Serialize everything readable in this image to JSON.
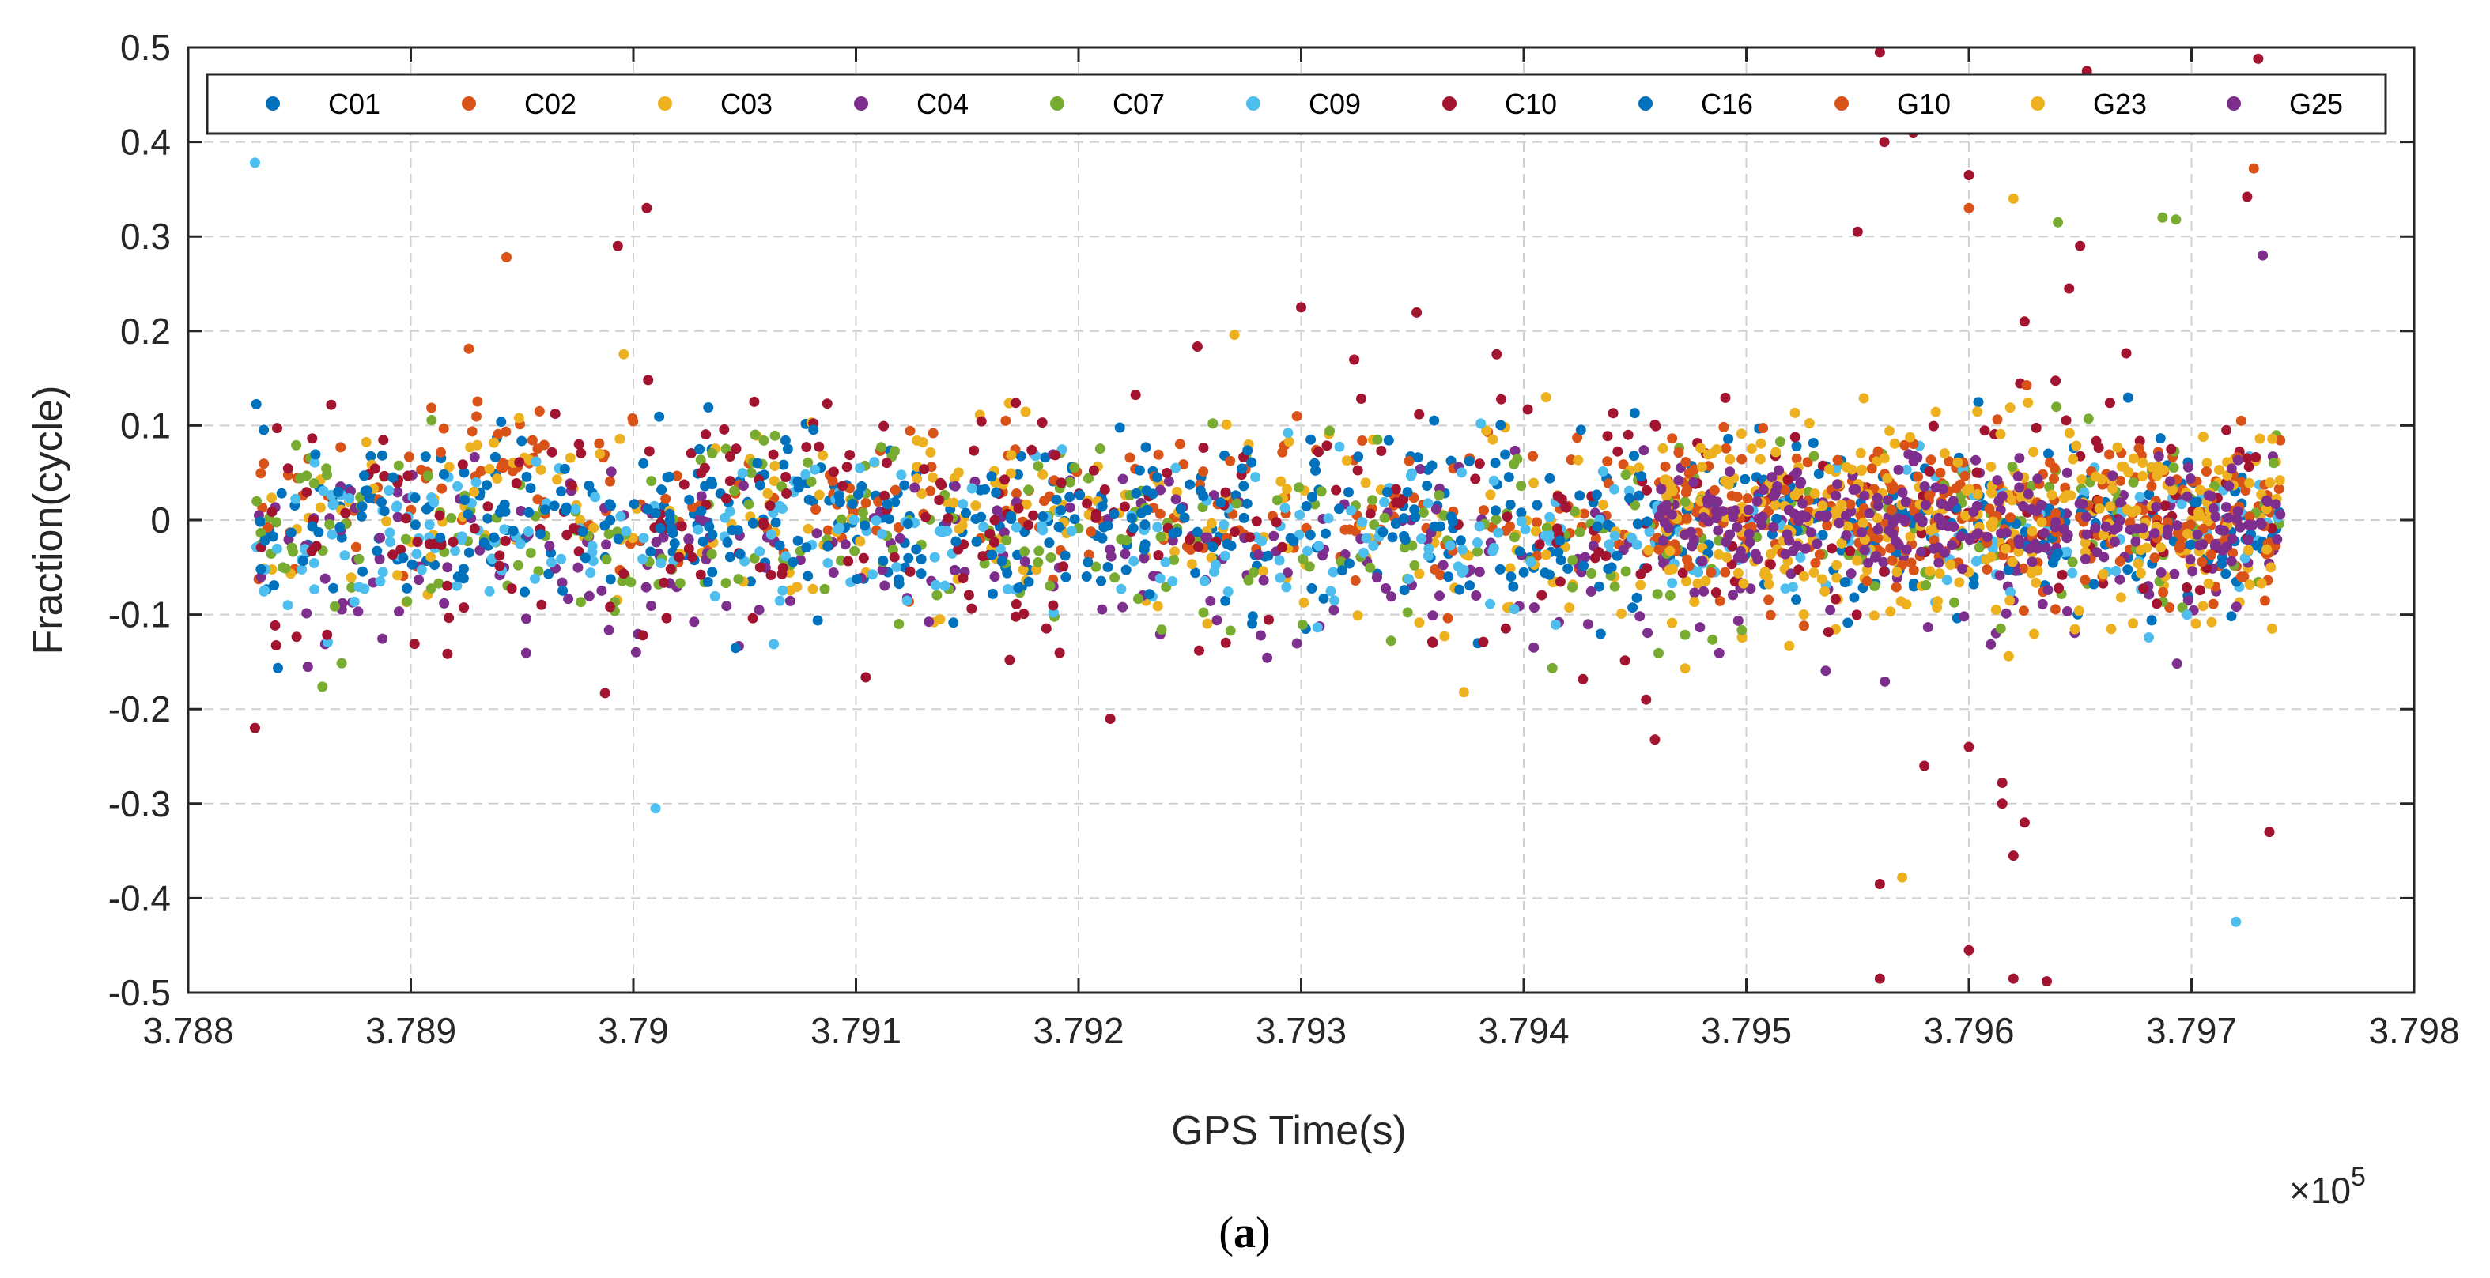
{
  "chart_data": {
    "type": "scatter",
    "title": "",
    "xlabel": "GPS Time(s)",
    "ylabel": "Fraction(cycle)",
    "x_exponent_label": "×10",
    "x_exponent_power": "5",
    "xlim": [
      3.788,
      3.798
    ],
    "ylim": [
      -0.5,
      0.5
    ],
    "x_range_data": [
      3.7883,
      3.7974
    ],
    "xticks": [
      3.788,
      3.789,
      3.79,
      3.791,
      3.792,
      3.793,
      3.794,
      3.795,
      3.796,
      3.797,
      3.798
    ],
    "xtick_labels": [
      "3.788",
      "3.789",
      "3.79",
      "3.791",
      "3.792",
      "3.793",
      "3.794",
      "3.795",
      "3.796",
      "3.797",
      "3.798"
    ],
    "yticks": [
      0.5,
      0.4,
      0.3,
      0.2,
      0.1,
      0,
      -0.1,
      -0.2,
      -0.3,
      -0.4,
      -0.5
    ],
    "ytick_labels": [
      "0.5",
      "0.4",
      "0.3",
      "0.2",
      "0.1",
      "0",
      "-0.1",
      "-0.2",
      "-0.3",
      "-0.4",
      "-0.5"
    ],
    "grid": true,
    "legend_position": "top, horizontal",
    "caption": "(a)",
    "caption_letter": "a",
    "series": [
      {
        "name": "C01",
        "color": "#0072BD",
        "spread": 0.045,
        "center": 0.0
      },
      {
        "name": "C02",
        "color": "#D95319",
        "spread": 0.04,
        "center": 0.01
      },
      {
        "name": "C03",
        "color": "#EDB120",
        "spread": 0.055,
        "center": 0.0
      },
      {
        "name": "C04",
        "color": "#7E2F8E",
        "spread": 0.05,
        "center": -0.04
      },
      {
        "name": "C07",
        "color": "#77AC30",
        "spread": 0.05,
        "center": -0.01
      },
      {
        "name": "C09",
        "color": "#4DBEEE",
        "spread": 0.045,
        "center": -0.02
      },
      {
        "name": "C10",
        "color": "#A2142F",
        "spread": 0.07,
        "center": 0.0
      },
      {
        "name": "C16",
        "color": "#0072BD",
        "spread": 0.04,
        "center": 0.0
      },
      {
        "name": "G10",
        "color": "#D95319",
        "spread": 0.04,
        "center": 0.0
      },
      {
        "name": "G23",
        "color": "#EDB120",
        "spread": 0.05,
        "center": 0.0
      },
      {
        "name": "G25",
        "color": "#7E2F8E",
        "spread": 0.03,
        "center": 0.0
      }
    ],
    "notable_points": [
      {
        "series": "C09",
        "x": 3.7883,
        "y": 0.378
      },
      {
        "series": "C10",
        "x": 3.7883,
        "y": -0.22
      },
      {
        "series": "C02",
        "x": 3.78943,
        "y": 0.278
      },
      {
        "series": "C10",
        "x": 3.78993,
        "y": 0.29
      },
      {
        "series": "C10",
        "x": 3.79006,
        "y": 0.33
      },
      {
        "series": "C09",
        "x": 3.7901,
        "y": -0.305
      },
      {
        "series": "C10",
        "x": 3.793,
        "y": 0.225
      },
      {
        "series": "G23",
        "x": 3.7927,
        "y": 0.196
      },
      {
        "series": "C10",
        "x": 3.7956,
        "y": 0.495
      },
      {
        "series": "C10",
        "x": 3.79562,
        "y": 0.4
      },
      {
        "series": "C10",
        "x": 3.79575,
        "y": 0.41
      },
      {
        "series": "C10",
        "x": 3.796,
        "y": 0.365
      },
      {
        "series": "G10",
        "x": 3.796,
        "y": 0.33
      },
      {
        "series": "G23",
        "x": 3.7962,
        "y": 0.34
      },
      {
        "series": "C10",
        "x": 3.79653,
        "y": 0.475
      },
      {
        "series": "C10",
        "x": 3.7973,
        "y": 0.488
      },
      {
        "series": "G10",
        "x": 3.79728,
        "y": 0.372
      },
      {
        "series": "C10",
        "x": 3.79725,
        "y": 0.342
      },
      {
        "series": "G25",
        "x": 3.79732,
        "y": 0.28
      },
      {
        "series": "C07",
        "x": 3.7964,
        "y": 0.315
      },
      {
        "series": "C07",
        "x": 3.79687,
        "y": 0.32
      },
      {
        "series": "C07",
        "x": 3.79693,
        "y": 0.318
      },
      {
        "series": "C10",
        "x": 3.7956,
        "y": -0.385
      },
      {
        "series": "C10",
        "x": 3.7956,
        "y": -0.485
      },
      {
        "series": "G23",
        "x": 3.7957,
        "y": -0.378
      },
      {
        "series": "C10",
        "x": 3.796,
        "y": -0.455
      },
      {
        "series": "C10",
        "x": 3.7962,
        "y": -0.355
      },
      {
        "series": "C10",
        "x": 3.7962,
        "y": -0.485
      },
      {
        "series": "C10",
        "x": 3.79625,
        "y": -0.32
      },
      {
        "series": "C10",
        "x": 3.79635,
        "y": -0.488
      },
      {
        "series": "C09",
        "x": 3.7972,
        "y": -0.425
      },
      {
        "series": "C10",
        "x": 3.79735,
        "y": -0.33
      },
      {
        "series": "C10",
        "x": 3.7958,
        "y": -0.26
      },
      {
        "series": "C10",
        "x": 3.796,
        "y": -0.24
      },
      {
        "series": "C10",
        "x": 3.79615,
        "y": -0.278
      },
      {
        "series": "C10",
        "x": 3.79615,
        "y": -0.3
      },
      {
        "series": "C10",
        "x": 3.7955,
        "y": 0.305
      },
      {
        "series": "C10",
        "x": 3.7965,
        "y": 0.29
      },
      {
        "series": "C10",
        "x": 3.79625,
        "y": 0.21
      },
      {
        "series": "C10",
        "x": 3.79645,
        "y": 0.245
      },
      {
        "series": "C10",
        "x": 3.79455,
        "y": -0.19
      }
    ]
  }
}
